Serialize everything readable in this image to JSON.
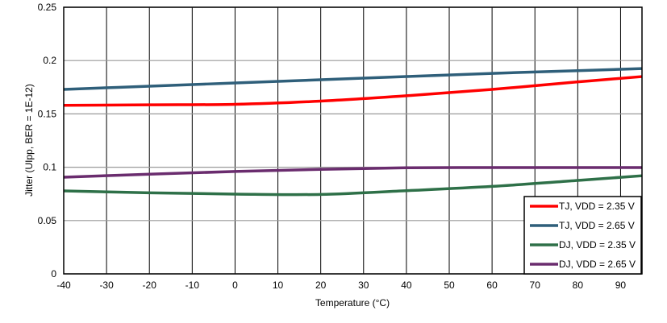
{
  "chart_data": {
    "type": "line",
    "title": "",
    "xlabel": "Temperature (°C)",
    "ylabel": "Jitter (UIpp, BER = 1E-12)",
    "xlim": [
      -40,
      95
    ],
    "ylim": [
      0,
      0.25
    ],
    "xticks": [
      -40,
      -30,
      -20,
      -10,
      0,
      10,
      20,
      30,
      40,
      50,
      60,
      70,
      80,
      90
    ],
    "yticks": [
      0,
      0.05,
      0.1,
      0.15,
      0.2,
      0.25
    ],
    "ytick_labels": [
      "0",
      "0.05",
      "0.1",
      "0.15",
      "0.2",
      "0.25"
    ],
    "grid": true,
    "legend_position": "bottom-right",
    "x": [
      -40,
      -20,
      0,
      20,
      40,
      60,
      80,
      95
    ],
    "series": [
      {
        "name": "TJ, VDD = 2.35 V",
        "color": "#ff0000",
        "values": [
          0.158,
          0.1585,
          0.159,
          0.162,
          0.167,
          0.173,
          0.18,
          0.185
        ]
      },
      {
        "name": "TJ, VDD = 2.65 V",
        "color": "#2f5f7a",
        "values": [
          0.173,
          0.176,
          0.179,
          0.182,
          0.185,
          0.188,
          0.1905,
          0.1925
        ]
      },
      {
        "name": "DJ, VDD = 2.35 V",
        "color": "#2e7048",
        "values": [
          0.0778,
          0.076,
          0.0748,
          0.0745,
          0.078,
          0.082,
          0.0876,
          0.092
        ]
      },
      {
        "name": "DJ, VDD = 2.65 V",
        "color": "#6a2c6e",
        "values": [
          0.0906,
          0.0935,
          0.096,
          0.098,
          0.0995,
          0.0997,
          0.0997,
          0.0997
        ]
      }
    ]
  }
}
